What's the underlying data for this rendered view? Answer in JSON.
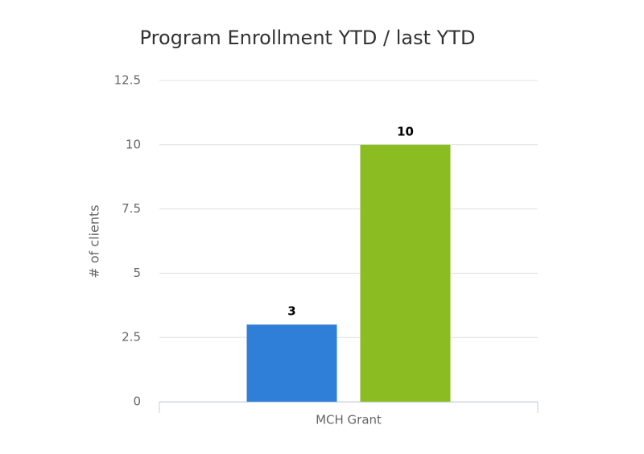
{
  "chart_data": {
    "type": "bar",
    "title": "Program Enrollment YTD / last YTD",
    "y_label": "# of clients",
    "categories": [
      "MCH Grant"
    ],
    "series": [
      {
        "color": "#2f7ed8",
        "values": [
          3
        ]
      },
      {
        "color": "#8bbc21",
        "values": [
          10
        ]
      }
    ],
    "ylim": [
      0,
      12.5
    ],
    "yticks": [
      0,
      2.5,
      5,
      7.5,
      10,
      12.5
    ],
    "grid": true
  }
}
